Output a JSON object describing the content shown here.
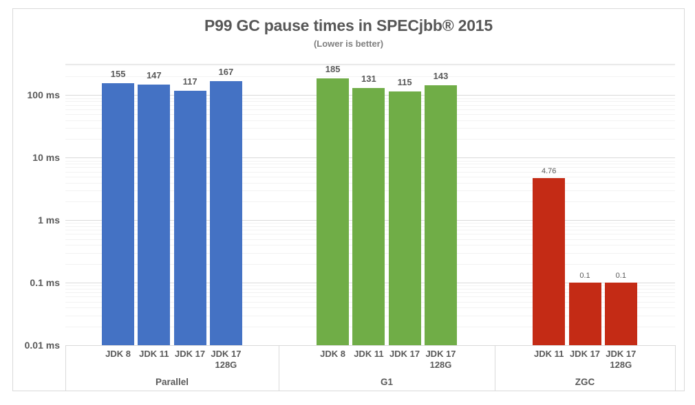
{
  "chart": {
    "title": "P99 GC pause times in SPECjbb® 2015",
    "subtitle": "(Lower is better)"
  },
  "colors": {
    "parallel": "#4472C4",
    "g1": "#70AD47",
    "zgc": "#C42B15",
    "text": "#595959",
    "grid_major": "#D9D9D9",
    "grid_minor": "#F2F2F2",
    "frame_border": "#D9D9D9"
  },
  "chart_data": {
    "type": "bar",
    "title": "P99 GC pause times in SPECjbb® 2015",
    "subtitle": "(Lower is better)",
    "y_scale": "log",
    "y_unit": "ms",
    "ylim": [
      0.01,
      316
    ],
    "grid": "major-and-log-minor",
    "legend": "none",
    "yticks": [
      {
        "value": 100,
        "label": "100 ms"
      },
      {
        "value": 10,
        "label": "10 ms"
      },
      {
        "value": 1,
        "label": "1 ms"
      },
      {
        "value": 0.1,
        "label": "0.1 ms"
      },
      {
        "value": 0.01,
        "label": "0.01 ms"
      }
    ],
    "groups": [
      {
        "name": "Parallel",
        "color": "#4472C4",
        "small_value_labels": false,
        "bars": [
          {
            "category": [
              "JDK 8"
            ],
            "value": 155,
            "value_label": "155"
          },
          {
            "category": [
              "JDK 11"
            ],
            "value": 147,
            "value_label": "147"
          },
          {
            "category": [
              "JDK 17"
            ],
            "value": 117,
            "value_label": "117"
          },
          {
            "category": [
              "JDK 17",
              "128G"
            ],
            "value": 167,
            "value_label": "167"
          }
        ]
      },
      {
        "name": "G1",
        "color": "#70AD47",
        "small_value_labels": false,
        "bars": [
          {
            "category": [
              "JDK 8"
            ],
            "value": 185,
            "value_label": "185"
          },
          {
            "category": [
              "JDK 11"
            ],
            "value": 131,
            "value_label": "131"
          },
          {
            "category": [
              "JDK 17"
            ],
            "value": 115,
            "value_label": "115"
          },
          {
            "category": [
              "JDK 17",
              "128G"
            ],
            "value": 143,
            "value_label": "143"
          }
        ]
      },
      {
        "name": "ZGC",
        "color": "#C42B15",
        "small_value_labels": true,
        "bars": [
          {
            "category": [
              "JDK 11"
            ],
            "value": 4.76,
            "value_label": "4.76"
          },
          {
            "category": [
              "JDK 17"
            ],
            "value": 0.1,
            "value_label": "0.1"
          },
          {
            "category": [
              "JDK 17",
              "128G"
            ],
            "value": 0.1,
            "value_label": "0.1"
          }
        ]
      }
    ]
  }
}
